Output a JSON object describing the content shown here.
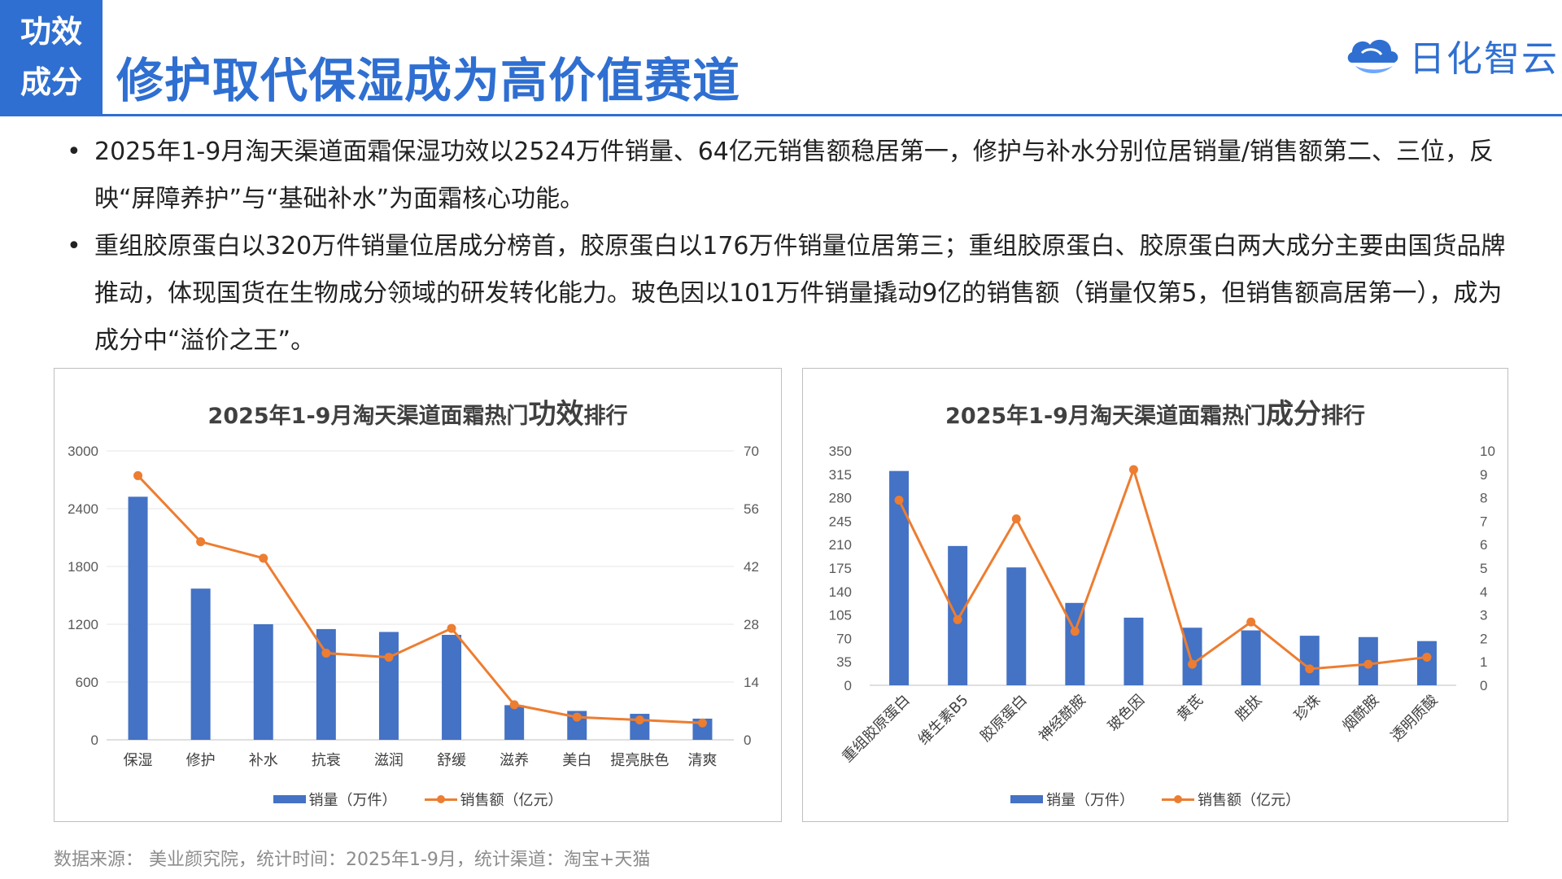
{
  "header": {
    "tag_line1": "功效",
    "tag_line2": "成分",
    "title": "修护取代保湿成为高价值赛道",
    "logo_text": "日化智云",
    "colors": {
      "brand": "#2f6fd1",
      "bar": "#4472c4",
      "line": "#ed7d31"
    }
  },
  "bullets": [
    {
      "text": "2025年1-9月淘天渠道面霜保湿功效以2524万件销量、64亿元销售额稳居第一，修护与补水分别位居销量/销售额第二、三位，反映“屏障养护”与“基础补水”为面霜核心功能。"
    },
    {
      "text": "重组胶原蛋白以320万件销量位居成分榜首，胶原蛋白以176万件销量位居第三；重组胶原蛋白、胶原蛋白两大成分主要由国货品牌推动，体现国货在生物成分领域的研发转化能力。玻色因以101万件销量撬动9亿的销售额（销量仅第5，但销售额高居第一），成为成分中“溢价之王”。"
    }
  ],
  "charts": [
    {
      "title_pre": "2025年1-9月淘天渠道面霜热门",
      "title_big": "功效",
      "title_post": "排行",
      "legend_bar": "销量（万件）",
      "legend_line": "销售额（亿元）"
    },
    {
      "title_pre": "2025年1-9月淘天渠道面霜热门",
      "title_big": "成分",
      "title_post": "排行",
      "legend_bar": "销量（万件）",
      "legend_line": "销售额（亿元）"
    }
  ],
  "chart_data": [
    {
      "type": "bar",
      "title": "2025年1-9月淘天渠道面霜热门功效排行",
      "categories": [
        "保湿",
        "修护",
        "补水",
        "抗衰",
        "滋润",
        "舒缓",
        "滋养",
        "美白",
        "提亮肤色",
        "清爽"
      ],
      "series": [
        {
          "name": "销量（万件）",
          "type": "bar",
          "axis": "left",
          "values": [
            2524,
            1570,
            1200,
            1150,
            1120,
            1090,
            360,
            300,
            270,
            220
          ]
        },
        {
          "name": "销售额（亿元）",
          "type": "line",
          "axis": "right",
          "values": [
            64,
            48,
            44,
            21,
            20,
            27,
            8.5,
            5.5,
            4.8,
            4.1
          ]
        }
      ],
      "y_left": {
        "min": 0,
        "max": 3000,
        "ticks": [
          0,
          600,
          1200,
          1800,
          2400,
          3000
        ]
      },
      "y_right": {
        "min": 0,
        "max": 70,
        "ticks": [
          0,
          14,
          28,
          42,
          56,
          70
        ]
      },
      "legend_position": "bottom",
      "grid": true
    },
    {
      "type": "bar",
      "title": "2025年1-9月淘天渠道面霜热门成分排行",
      "categories": [
        "重组胶原蛋白",
        "维生素B5",
        "胶原蛋白",
        "神经酰胺",
        "玻色因",
        "黄芪",
        "胜肽",
        "珍珠",
        "烟酰胺",
        "透明质酸"
      ],
      "series": [
        {
          "name": "销量（万件）",
          "type": "bar",
          "axis": "left",
          "values": [
            320,
            208,
            176,
            123,
            101,
            86,
            82,
            74,
            72,
            66
          ]
        },
        {
          "name": "销售额（亿元）",
          "type": "line",
          "axis": "right",
          "values": [
            7.9,
            2.8,
            7.1,
            2.3,
            9.2,
            0.9,
            2.7,
            0.7,
            0.9,
            1.2
          ]
        }
      ],
      "y_left": {
        "min": 0,
        "max": 350,
        "ticks": [
          0,
          35,
          70,
          105,
          140,
          175,
          210,
          245,
          280,
          315,
          350
        ]
      },
      "y_right": {
        "min": 0,
        "max": 10,
        "ticks": [
          0,
          1,
          2,
          3,
          4,
          5,
          6,
          7,
          8,
          9,
          10
        ]
      },
      "legend_position": "bottom",
      "grid": false
    }
  ],
  "footnote": "数据来源： 美业颜究院，统计时间：2025年1-9月，统计渠道：淘宝+天猫"
}
